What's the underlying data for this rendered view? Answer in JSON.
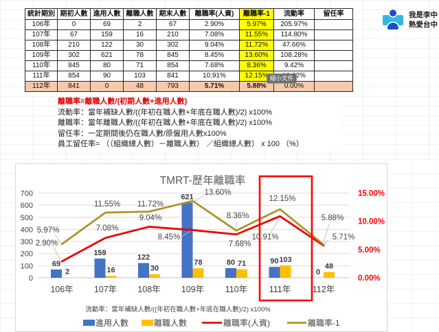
{
  "profile": {
    "line1": "我是李中",
    "line2": "熱愛台中"
  },
  "tooltip": "縮小文件",
  "table": {
    "headers": [
      "統計期別",
      "期初人數",
      "進用人數",
      "離職人數",
      "期末人數",
      "離職率(人資)",
      "離職率-1",
      "流動率",
      "留任率"
    ],
    "rows": [
      [
        "106年",
        "0",
        "69",
        "2",
        "67",
        "2.90%",
        "5.97%",
        "205.97%",
        ""
      ],
      [
        "107年",
        "67",
        "159",
        "16",
        "210",
        "7.08%",
        "11.55%",
        "114.80%",
        ""
      ],
      [
        "108年",
        "210",
        "122",
        "30",
        "302",
        "9.04%",
        "11.72%",
        "47.66%",
        ""
      ],
      [
        "109年",
        "302",
        "621",
        "78",
        "845",
        "8.45%",
        "13.60%",
        "108.28%",
        ""
      ],
      [
        "110年",
        "845",
        "80",
        "71",
        "854",
        "7.68%",
        "8.36%",
        "9.42%",
        ""
      ],
      [
        "111年",
        "854",
        "90",
        "103",
        "841",
        "10.91%",
        "12.15%",
        "10.62%",
        ""
      ],
      [
        "112年",
        "841",
        "0",
        "48",
        "793",
        "5.71%",
        "5.88%",
        "0.00%",
        ""
      ]
    ]
  },
  "notes": [
    {
      "text": "離職率=離職人數/(初期人數+進用人數)",
      "color": "red"
    },
    {
      "text": "流動率：當年補缺人數/((年初在職人數+年底在職人數)/2) x100%",
      "color": "black"
    },
    {
      "text": "離職率：當年離職人數/((年初在職人數+年底在職人數)/2) x100%",
      "color": "black"
    },
    {
      "text": "留任率：一定期間後仍在職人數/原僱用人數x100%",
      "color": "black"
    },
    {
      "text": "員工留任率= （（組織總人數）－離職人數） ／組織總人數） x 100 （%）",
      "color": "black"
    }
  ],
  "chart_data": {
    "type": "bar",
    "subtype": "combo-bar-line",
    "title": "TMRT-歷年離職率",
    "categories": [
      "106年",
      "107年",
      "108年",
      "109年",
      "110年",
      "111年",
      "112年"
    ],
    "bar_series": [
      {
        "name": "進用人數",
        "color": "#4472C4",
        "values": [
          69,
          159,
          122,
          621,
          80,
          90,
          0
        ]
      },
      {
        "name": "離職人數",
        "color": "#FFC000",
        "values": [
          2,
          16,
          30,
          78,
          71,
          103,
          48
        ]
      }
    ],
    "line_series": [
      {
        "name": "離職率(人資)",
        "color": "#EE0000",
        "values": [
          2.9,
          7.08,
          9.04,
          8.45,
          7.68,
          10.91,
          5.71
        ]
      },
      {
        "name": "離職率-1",
        "color": "#AD9424",
        "values": [
          5.97,
          11.55,
          11.72,
          13.6,
          8.36,
          12.15,
          5.88
        ]
      }
    ],
    "left_axis": {
      "min": 0,
      "max": 700,
      "step": 100,
      "ticks": [
        0,
        100,
        200,
        300,
        400,
        500,
        600,
        700
      ]
    },
    "right_axis": {
      "min": 0,
      "max": 15,
      "step": 5,
      "labels": [
        "0.00%",
        "5.00%",
        "10.00%",
        "15.00%"
      ],
      "color": "#FF0000"
    },
    "note": "流動率：當年補缺人數/((年初在職人數+年底在職人數)/2) x100%",
    "legend_position": "bottom",
    "grid": true,
    "annotation": {
      "type": "red-rectangle",
      "highlighted_category": "111年",
      "color": "#FF0000"
    }
  }
}
